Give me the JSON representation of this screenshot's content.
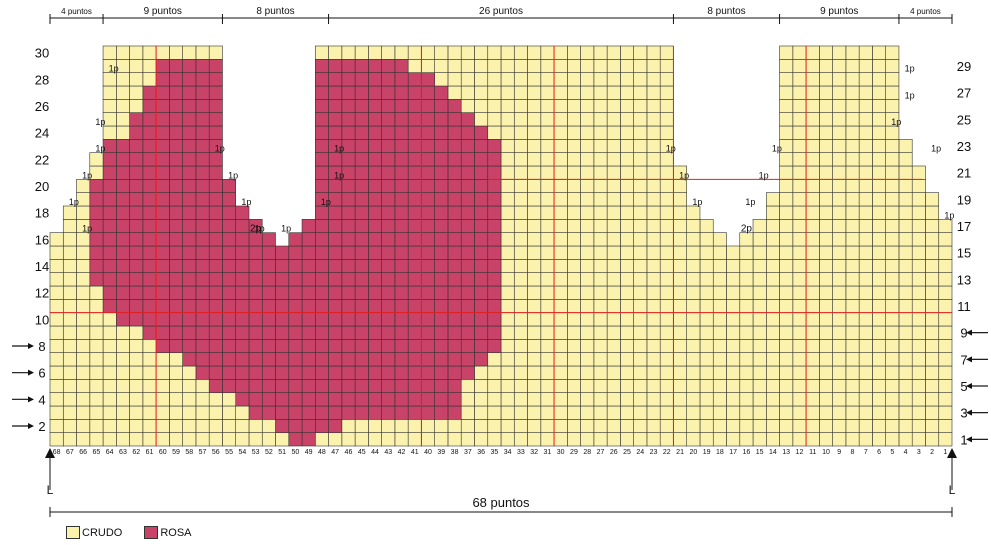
{
  "pattern": {
    "stitch_count": 68,
    "row_count": 30,
    "colors": {
      "crudo": "#fbf3ad",
      "rosa": "#c94268",
      "grid": "#333333",
      "guide": "#e81e1e"
    },
    "rosa_rows": [
      [
        49,
        50
      ],
      [
        47,
        51
      ],
      [
        38,
        53
      ],
      [
        38,
        54
      ],
      [
        38,
        56
      ],
      [
        37,
        57
      ],
      [
        36,
        58
      ],
      [
        35,
        60
      ],
      [
        35,
        61
      ],
      [
        35,
        63
      ],
      [
        35,
        64
      ],
      [
        35,
        64
      ],
      [
        35,
        65
      ],
      [
        35,
        65
      ],
      [
        35,
        65
      ],
      [
        35,
        65
      ],
      [
        35,
        65
      ],
      [
        35,
        65
      ],
      [
        35,
        65
      ],
      [
        35,
        65
      ],
      [
        35,
        64
      ],
      [
        35,
        64
      ],
      [
        35,
        64
      ],
      [
        36,
        62
      ],
      [
        37,
        62
      ],
      [
        38,
        61
      ],
      [
        39,
        61
      ],
      [
        40,
        60
      ],
      [
        42,
        60
      ],
      null
    ],
    "shape_right": [
      [
        1,
        3,
        1,
        68
      ],
      [
        4,
        15,
        1,
        68
      ],
      [
        16,
        16,
        1,
        67
      ],
      [
        17,
        18,
        1,
        66
      ],
      [
        19,
        20,
        1,
        65
      ],
      [
        21,
        22,
        1,
        64
      ],
      [
        23,
        24,
        1,
        63
      ],
      [
        25,
        26,
        1,
        62
      ],
      [
        27,
        30,
        1,
        4
      ],
      [
        27,
        30,
        13,
        21
      ],
      [
        27,
        30,
        48,
        62
      ],
      [
        27,
        28,
        48,
        63
      ],
      [
        16,
        17,
        1,
        68
      ]
    ]
  },
  "col_numbers": [
    "68",
    "67",
    "66",
    "65",
    "64",
    "63",
    "62",
    "61",
    "60",
    "59",
    "58",
    "57",
    "56",
    "55",
    "54",
    "53",
    "52",
    "51",
    "50",
    "49",
    "48",
    "47",
    "46",
    "45",
    "44",
    "43",
    "42",
    "41",
    "40",
    "39",
    "38",
    "37",
    "36",
    "35",
    "34",
    "33",
    "32",
    "31",
    "30",
    "29",
    "28",
    "27",
    "26",
    "25",
    "24",
    "23",
    "22",
    "21",
    "20",
    "19",
    "18",
    "17",
    "16",
    "15",
    "14",
    "13",
    "12",
    "11",
    "10",
    "9",
    "8",
    "7",
    "6",
    "5",
    "4",
    "3",
    "2",
    "1"
  ],
  "left_rows": [
    "30",
    "28",
    "26",
    "24",
    "22",
    "20",
    "18",
    "16",
    "14",
    "12",
    "10",
    "8",
    "6",
    "4",
    "2"
  ],
  "right_rows": [
    "29",
    "27",
    "25",
    "23",
    "21",
    "19",
    "17",
    "15",
    "13",
    "11",
    "9",
    "7",
    "5",
    "3",
    "1"
  ],
  "arrow_rows_left": [
    "8",
    "6",
    "4",
    "2"
  ],
  "arrow_rows_right": [
    "9",
    "7",
    "5",
    "3",
    "1"
  ],
  "top_segments": [
    "4 puntos",
    "9 puntos",
    "8 puntos",
    "26 puntos",
    "8 puntos",
    "9 puntos",
    "4 puntos"
  ],
  "dec_label": "1p",
  "center_dec_label": "2p",
  "total_label": "68 puntos",
  "corner_left": "L",
  "corner_right": "L",
  "legend": [
    {
      "label": "CRUDO",
      "color": "#fbf3ad"
    },
    {
      "label": "ROSA",
      "color": "#c94268"
    }
  ]
}
